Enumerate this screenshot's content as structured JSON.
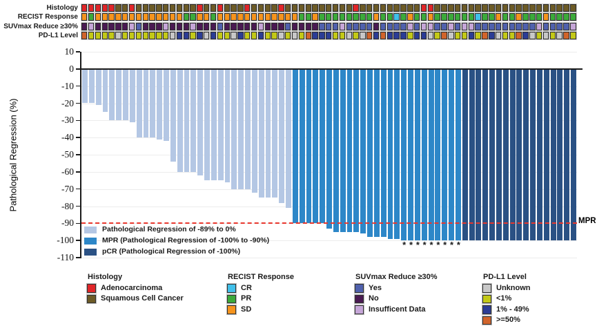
{
  "annotations": {
    "rows": [
      {
        "label": "Histology",
        "values": "RRRRRBBRBBBBBBBBBRBBRBBBRBBBBRBBBBBBBBBBRBBBBBBBBBRRBBBBBBBBBBBBBBBBBBBBB"
      },
      {
        "label": "RECIST Response",
        "values": "OGOOOOOOOOOOOOOGGOOGOOOOOOOOOOOOGGOGGGGGGGGOGGCGOGGOGGGGGGCGGOGGOGGGOGGGG"
      },
      {
        "label": "SUVmax Reduce ≥30%",
        "values": "NINNNNNIYNNNINNNINNNYNNNNNINNNYNNNNYYYIYYYYNYYYYIYIIYYIYIIYYYYYYYYYIYYYYI"
      },
      {
        "label": "PD-L1 Level",
        "values": "HLLLLULLLLLLLUMMLMUMLLUMLLMLLULULHMMMLLULUHMHMMMLMMULHULLMLHMULLHMULULUHL"
      }
    ],
    "palette": {
      "R": "#e12629",
      "B": "#6d5b26",
      "O": "#f6941d",
      "G": "#3caa3a",
      "C": "#41c0ea",
      "Y": "#5061ad",
      "N": "#4a1a52",
      "I": "#c6a6d8",
      "U": "#c8c8c8",
      "L": "#c3c917",
      "M": "#2b3c95",
      "H": "#d1642b"
    }
  },
  "chart_data": {
    "type": "bar",
    "title": "",
    "xlabel": "",
    "ylabel": "Pathological Regression (%)",
    "ylim": [
      -110,
      10
    ],
    "yticks": [
      10,
      0,
      -10,
      -20,
      -30,
      -40,
      -50,
      -60,
      -70,
      -80,
      -90,
      -100,
      -110
    ],
    "grid": "horizontal-light",
    "values": [
      -20,
      -20,
      -21,
      -25,
      -30,
      -30,
      -30,
      -31,
      -40,
      -40,
      -40,
      -41,
      -42,
      -54,
      -60,
      -60,
      -60,
      -62,
      -65,
      -65,
      -65,
      -66,
      -70,
      -70,
      -70,
      -72,
      -75,
      -75,
      -75,
      -78,
      -81,
      -90,
      -90,
      -90,
      -90,
      -90,
      -93,
      -95,
      -95,
      -95,
      -95,
      -96,
      -98,
      -98,
      -98,
      -99,
      -99,
      -100,
      -100,
      -100,
      -100,
      -100,
      -100,
      -100,
      -100,
      -100,
      -100,
      -100,
      -100,
      -100,
      -100,
      -100,
      -100,
      -100,
      -100,
      -100,
      -100,
      -100,
      -100,
      -100,
      -100,
      -100,
      -100
    ],
    "segments": [
      {
        "category": "light",
        "count": 31
      },
      {
        "category": "mpr",
        "count": 25
      },
      {
        "category": "pcr",
        "count": 17
      }
    ],
    "category_colors": {
      "light": "#b4c7e4",
      "mpr": "#2d87c8",
      "pcr": "#2a5184"
    },
    "reference_line": {
      "value": -90,
      "label": "MPR",
      "color": "#e8362c",
      "style": "dashed"
    },
    "asterisk_bars": [
      48,
      49,
      50,
      51,
      52,
      53,
      54,
      55,
      56
    ],
    "legend": [
      {
        "category": "light",
        "label": "Pathological Regression of -89% to 0%"
      },
      {
        "category": "mpr",
        "label": "MPR (Pathological Regression of -100% to -90%)"
      },
      {
        "category": "pcr",
        "label": "pCR (Pathological Regression of -100%)"
      }
    ]
  },
  "bottom_legends": [
    {
      "title": "Histology",
      "items": [
        {
          "label": "Adenocarcinoma",
          "code": "R"
        },
        {
          "label": "Squamous Cell Cancer",
          "code": "B"
        }
      ]
    },
    {
      "title": "RECIST Response",
      "items": [
        {
          "label": "CR",
          "code": "C"
        },
        {
          "label": "PR",
          "code": "G"
        },
        {
          "label": "SD",
          "code": "O"
        }
      ]
    },
    {
      "title": "SUVmax Reduce ≥30%",
      "items": [
        {
          "label": "Yes",
          "code": "Y"
        },
        {
          "label": "No",
          "code": "N"
        },
        {
          "label": "Insufficent Data",
          "code": "I"
        }
      ]
    },
    {
      "title": "PD-L1 Level",
      "items": [
        {
          "label": "Unknown",
          "code": "U"
        },
        {
          "label": "<1%",
          "code": "L"
        },
        {
          "label": "1% - 49%",
          "code": "M"
        },
        {
          "label": ">=50%",
          "code": "H"
        }
      ]
    }
  ]
}
